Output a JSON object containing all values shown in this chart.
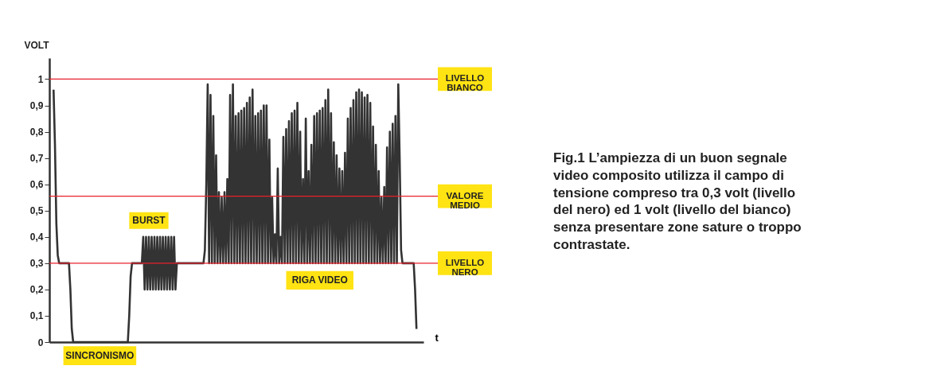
{
  "chart_data": {
    "type": "line",
    "ylabel": "VOLT",
    "xlabel": "t",
    "tick_labels": "y",
    "color": "#333333",
    "ylim": [
      0,
      1.08
    ],
    "yticks": [
      0,
      {
        "value": 0.1,
        "label": "0,1"
      },
      {
        "value": 0.2,
        "label": "0,2"
      },
      {
        "value": 0.3,
        "label": "0,3"
      },
      {
        "value": 0.4,
        "label": "0,4"
      },
      {
        "value": 0.5,
        "label": "0,5"
      },
      {
        "value": 0.6,
        "label": "0,6"
      },
      {
        "value": 0.7,
        "label": "0,7"
      },
      {
        "value": 0.8,
        "label": "0,8"
      },
      {
        "value": 0.9,
        "label": "0,9"
      },
      1
    ],
    "ref_lines": [
      {
        "axis": "y",
        "value": 1,
        "label": "LIVELLO BIANCO",
        "color": "#e8202a"
      },
      {
        "axis": "y",
        "value": 0.555,
        "label": "VALORE MEDIO",
        "color": "#e8202a"
      },
      {
        "axis": "y",
        "value": 0.3,
        "label": "LIVELLO NERO",
        "color": "#e8202a"
      }
    ],
    "annotations": [
      "SINCRONISMO",
      "BURST",
      "RIGA VIDEO",
      "Fig.1 L’ampiezza di un buon segnale video composito utilizza il campo di tensione compreso tra 0,3 volt (livello del nero) ed 1 volt (livello del bianco) senza presentare zone sature o troppo contrastate."
    ],
    "categories": [
      null,
      null,
      null,
      null,
      null,
      null,
      null,
      null,
      null,
      null,
      null,
      null,
      null,
      null,
      null,
      null,
      null,
      null,
      null,
      null,
      null,
      null,
      null,
      null,
      null,
      null,
      null,
      null,
      null,
      null,
      null,
      null,
      null,
      null,
      null,
      null,
      null,
      null,
      null,
      null,
      null,
      null,
      null,
      null,
      null,
      null,
      null,
      null,
      null,
      null,
      null,
      null,
      null,
      null,
      null,
      null,
      null,
      null,
      null,
      null,
      null,
      null,
      null,
      null,
      null,
      null,
      null,
      null,
      null,
      null,
      null,
      null,
      null,
      null,
      null,
      null,
      null,
      null,
      null,
      null,
      null,
      null,
      null,
      null,
      null,
      null,
      null,
      null,
      null,
      null,
      null,
      null,
      null,
      null,
      null,
      null,
      null,
      null,
      null,
      null,
      null,
      null,
      null,
      null,
      null,
      null,
      null,
      null,
      null,
      null,
      null,
      null,
      null,
      null,
      null,
      null,
      null,
      null,
      null,
      null,
      null,
      null,
      null,
      null,
      null,
      null,
      null,
      null,
      null,
      null,
      null,
      null,
      null,
      null,
      null,
      null,
      null,
      null,
      null,
      null,
      null,
      null,
      null,
      null,
      null,
      null,
      null,
      null,
      null,
      null,
      null,
      null,
      null,
      null,
      null,
      null,
      null,
      null,
      null,
      null,
      null,
      null,
      null,
      null,
      null,
      null,
      null,
      null,
      null,
      null,
      null,
      null,
      null,
      null,
      null,
      null,
      null,
      null,
      null,
      null,
      null,
      null,
      null,
      null,
      null,
      null,
      null,
      null,
      null,
      null,
      null,
      null,
      null,
      null,
      null,
      null,
      null,
      null,
      null,
      null,
      null,
      null,
      null,
      null,
      null,
      null,
      null,
      null,
      null,
      null,
      null,
      null,
      null,
      null,
      null,
      null,
      null,
      null,
      null,
      null,
      null,
      null,
      null,
      null,
      null,
      null,
      null,
      null,
      null,
      null,
      null,
      null,
      null,
      null,
      null,
      null,
      null,
      null,
      null,
      null,
      null,
      null,
      null,
      null,
      null,
      null,
      null,
      null,
      null,
      null,
      null,
      null,
      null,
      null,
      null,
      null,
      null,
      null,
      null,
      null
    ],
    "values": [
      0.96,
      0.75,
      0.45,
      0.33,
      0.3,
      0.3,
      0.3,
      0.3,
      0.3,
      0.3,
      0.3,
      0.3,
      0.2,
      0.05,
      0,
      0,
      0,
      0,
      0,
      0,
      0,
      0,
      0,
      0,
      0,
      0,
      0,
      0,
      0,
      0,
      0,
      0,
      0,
      0,
      0,
      0,
      0,
      0,
      0,
      0,
      0,
      0,
      0,
      0,
      0,
      0,
      0,
      0,
      0,
      0,
      0,
      0,
      0,
      0,
      0.1,
      0.25,
      0.3,
      0.3,
      0.3,
      0.3,
      0.3,
      0.3,
      0.3,
      0.3,
      0.4,
      0.2,
      0.4,
      0.2,
      0.4,
      0.2,
      0.4,
      0.2,
      0.4,
      0.2,
      0.4,
      0.2,
      0.4,
      0.2,
      0.4,
      0.2,
      0.4,
      0.2,
      0.4,
      0.2,
      0.4,
      0.2,
      0.4,
      0.2,
      0.3,
      0.3,
      0.3,
      0.3,
      0.3,
      0.3,
      0.3,
      0.3,
      0.3,
      0.3,
      0.3,
      0.3,
      0.3,
      0.3,
      0.3,
      0.3,
      0.3,
      0.3,
      0.3,
      0.3,
      0.35,
      0.6,
      0.98,
      0.3,
      0.94,
      0.3,
      0.86,
      0.3,
      0.71,
      0.3,
      0.57,
      0.3,
      0.55,
      0.3,
      0.57,
      0.3,
      0.62,
      0.3,
      0.94,
      0.3,
      0.98,
      0.3,
      0.86,
      0.3,
      0.87,
      0.3,
      0.88,
      0.3,
      0.89,
      0.3,
      0.91,
      0.3,
      0.93,
      0.3,
      0.96,
      0.3,
      0.86,
      0.3,
      0.87,
      0.3,
      0.88,
      0.3,
      0.9,
      0.3,
      0.9,
      0.3,
      0.77,
      0.3,
      0.55,
      0.3,
      0.41,
      0.3,
      0.66,
      0.3,
      0.4,
      0.3,
      0.78,
      0.3,
      0.81,
      0.3,
      0.84,
      0.3,
      0.87,
      0.3,
      0.88,
      0.3,
      0.91,
      0.3,
      0.8,
      0.3,
      0.62,
      0.3,
      0.85,
      0.3,
      0.65,
      0.3,
      0.75,
      0.3,
      0.86,
      0.3,
      0.87,
      0.3,
      0.88,
      0.3,
      0.89,
      0.3,
      0.92,
      0.3,
      0.96,
      0.3,
      0.87,
      0.3,
      0.76,
      0.3,
      0.71,
      0.3,
      0.66,
      0.3,
      0.65,
      0.3,
      0.72,
      0.3,
      0.85,
      0.3,
      0.89,
      0.3,
      0.92,
      0.3,
      0.95,
      0.3,
      0.96,
      0.3,
      0.95,
      0.3,
      0.93,
      0.3,
      0.94,
      0.3,
      0.91,
      0.3,
      0.82,
      0.3,
      0.75,
      0.3,
      0.65,
      0.3,
      0.55,
      0.3,
      0.59,
      0.3,
      0.74,
      0.3,
      0.8,
      0.3,
      0.83,
      0.3,
      0.86,
      0.3,
      0.98,
      0.7,
      0.35,
      0.3,
      0.3,
      0.3,
      0.3,
      0.3,
      0.3,
      0.3,
      0.3,
      0.3,
      0.2,
      0.05
    ]
  }
}
